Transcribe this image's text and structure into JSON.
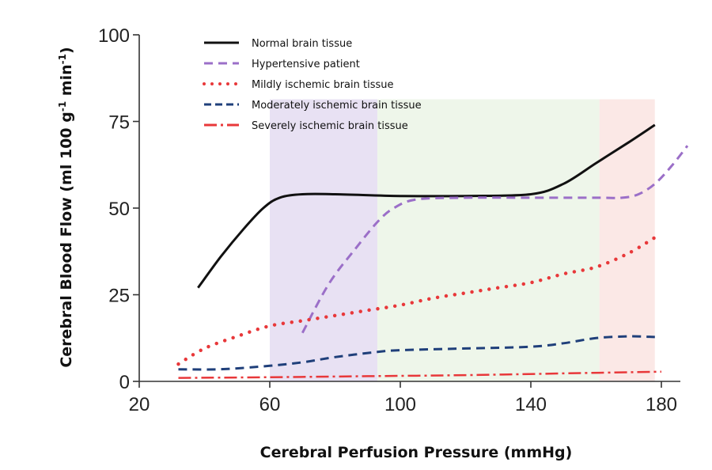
{
  "chart_data": {
    "type": "line",
    "title": "",
    "xlabel": "Cerebral Perfusion Pressure (mmHg)",
    "ylabel": "Cerebral Blood Flow (ml 100 g⁻¹ min⁻¹)",
    "xlim": [
      20,
      188
    ],
    "ylim": [
      0,
      100
    ],
    "xticks": [
      20,
      60,
      100,
      140,
      180
    ],
    "yticks": [
      0,
      25,
      50,
      75,
      100
    ],
    "grid": false,
    "legend_position": "top-left",
    "shaded_regions": [
      {
        "x0": 60,
        "x1": 93,
        "color": "#e8e1f3"
      },
      {
        "x0": 93,
        "x1": 161,
        "color": "#eef6ea"
      },
      {
        "x0": 161,
        "x1": 178,
        "color": "#fbe8e6"
      }
    ],
    "series": [
      {
        "name": "Normal brain tissue",
        "color": "#111111",
        "style": "solid",
        "x": [
          38,
          45,
          52,
          58,
          63,
          70,
          80,
          100,
          120,
          140,
          150,
          160,
          170,
          178
        ],
        "y": [
          27,
          36,
          44,
          50,
          53,
          54,
          54,
          53.5,
          53.5,
          54,
          57,
          63,
          69,
          74
        ]
      },
      {
        "name": "Hypertensive patient",
        "color": "#9b6fc8",
        "style": "dashed",
        "x": [
          70,
          78,
          86,
          93,
          98,
          105,
          120,
          140,
          160,
          168,
          173,
          178,
          183,
          188
        ],
        "y": [
          14,
          28,
          38,
          46,
          50,
          52.5,
          53,
          53,
          53,
          53,
          54,
          57,
          62,
          68
        ]
      },
      {
        "name": "Mildly ischemic brain tissue",
        "color": "#e8383a",
        "style": "dotted",
        "x": [
          32,
          40,
          50,
          60,
          70,
          80,
          90,
          100,
          110,
          120,
          130,
          140,
          150,
          160,
          170,
          178
        ],
        "y": [
          5,
          9.5,
          13,
          16,
          17.5,
          19,
          20.5,
          22,
          24,
          25.5,
          27,
          28.5,
          31,
          33,
          37,
          41.5
        ]
      },
      {
        "name": "Moderately ischemic brain tissue",
        "color": "#1f3f7a",
        "style": "dashed",
        "x": [
          32,
          45,
          60,
          70,
          80,
          93,
          100,
          120,
          140,
          150,
          160,
          170,
          178
        ],
        "y": [
          3.5,
          3.5,
          4.5,
          5.5,
          7,
          8.5,
          9,
          9.5,
          10,
          11,
          12.5,
          13,
          12.8
        ]
      },
      {
        "name": "Severely ischemic brain tissue",
        "color": "#e8383a",
        "style": "dashdot",
        "x": [
          32,
          60,
          90,
          120,
          150,
          180
        ],
        "y": [
          1,
          1.2,
          1.5,
          1.8,
          2.3,
          2.8
        ]
      }
    ]
  },
  "axis": {
    "x_tick_labels": [
      "20",
      "60",
      "100",
      "140",
      "180"
    ],
    "y_tick_labels": [
      "0",
      "25",
      "50",
      "75",
      "100"
    ],
    "x_title": "Cerebral Perfusion Pressure (mmHg)",
    "y_title_pre": "Cerebral Blood Flow (ml 100 g",
    "y_title_sup1": "-1",
    "y_title_mid": " min",
    "y_title_sup2": "-1",
    "y_title_post": ")"
  },
  "legend": [
    {
      "label": "Normal brain tissue"
    },
    {
      "label": "Hypertensive patient"
    },
    {
      "label": "Mildly ischemic brain tissue"
    },
    {
      "label": "Moderately ischemic brain tissue"
    },
    {
      "label": "Severely ischemic brain tissue"
    }
  ]
}
